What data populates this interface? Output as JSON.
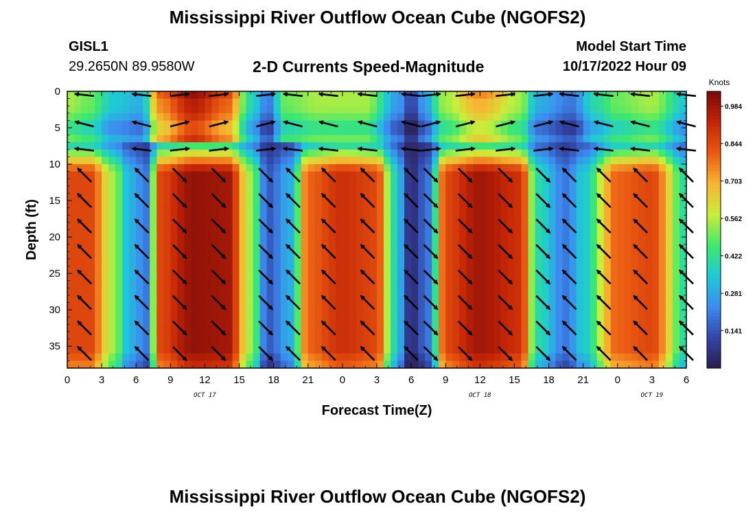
{
  "header": {
    "title": "Mississippi River Outflow Ocean Cube (NGOFS2)",
    "station_id": "GISL1",
    "station_coords": "29.2650N  89.9580W",
    "plot_title": "2-D Currents Speed-Magnitude",
    "model_start_label": "Model Start Time",
    "model_start_value": "10/17/2022 Hour 09"
  },
  "footer": {
    "title": "Mississippi River Outflow Ocean Cube (NGOFS2)"
  },
  "chart_data": {
    "type": "heatmap",
    "title": "2-D Currents Speed-Magnitude",
    "xlabel": "Forecast Time(Z)",
    "ylabel": "Depth (ft)",
    "x_hours_range": [
      0,
      54
    ],
    "x_tick_hours": [
      0,
      3,
      6,
      9,
      12,
      15,
      18,
      21,
      24,
      27,
      30,
      33,
      36,
      39,
      42,
      45,
      48,
      51,
      54
    ],
    "x_tick_labels": [
      "0",
      "3",
      "6",
      "9",
      "12",
      "15",
      "18",
      "21",
      "0",
      "3",
      "6",
      "9",
      "12",
      "15",
      "18",
      "21",
      "0",
      "3",
      "6"
    ],
    "date_labels": [
      {
        "hour": 12,
        "text": "OCT 17"
      },
      {
        "hour": 36,
        "text": "OCT 18"
      },
      {
        "hour": 51,
        "text": "OCT 19"
      }
    ],
    "ylim": [
      0,
      38
    ],
    "y_ticks": [
      0,
      5,
      10,
      15,
      20,
      25,
      30,
      35
    ],
    "colorbar": {
      "unit_label": "Knots",
      "range": [
        0.0,
        1.04
      ],
      "tick_values": [
        0.141,
        0.281,
        0.422,
        0.562,
        0.703,
        0.844,
        0.984
      ],
      "tick_labels": [
        "0.141",
        "0.281",
        "0.422",
        "0.562",
        "0.703",
        "0.844",
        "0.984"
      ]
    },
    "surface_layer": {
      "depth_range": [
        0,
        8
      ],
      "key_times_hours": [
        0,
        2,
        4,
        6.5,
        8,
        11,
        14,
        16,
        17.5,
        19,
        22,
        26,
        29,
        30,
        31,
        33,
        36,
        39.5,
        41,
        44,
        46,
        48,
        51,
        54
      ],
      "key_speeds_knots": [
        0.55,
        0.5,
        0.35,
        0.3,
        0.75,
        0.95,
        0.8,
        0.4,
        0.2,
        0.5,
        0.55,
        0.55,
        0.25,
        0.1,
        0.25,
        0.55,
        0.7,
        0.55,
        0.3,
        0.2,
        0.4,
        0.5,
        0.55,
        0.35
      ]
    },
    "lower_layer": {
      "depth_range": [
        8,
        38
      ],
      "key_times_hours": [
        0,
        2,
        4,
        5.5,
        7,
        8,
        11,
        14,
        16,
        17.5,
        19.5,
        21,
        24,
        27,
        28.5,
        30,
        31.5,
        33,
        36,
        39.5,
        41,
        43.5,
        45,
        48,
        51,
        54
      ],
      "key_speeds_knots": [
        0.85,
        0.85,
        0.55,
        0.3,
        0.2,
        0.85,
        1.0,
        0.98,
        0.55,
        0.15,
        0.3,
        0.8,
        0.9,
        0.85,
        0.4,
        0.05,
        0.2,
        0.85,
        0.98,
        0.9,
        0.4,
        0.2,
        0.35,
        0.8,
        0.85,
        0.4
      ]
    },
    "arrow_times_hours": [
      1.5,
      6.5,
      9.8,
      13.2,
      17.3,
      19.7,
      22.8,
      26.2,
      30,
      31.7,
      34.7,
      38.2,
      41.5,
      43.8,
      46.8,
      50,
      54
    ],
    "arrow_depths_ft": [
      0.5,
      4.5,
      8,
      11.5,
      15,
      18.5,
      22,
      25.5,
      29,
      32.5,
      36
    ],
    "arrow_phase": {
      "surface": [
        {
          "until_hour": 8,
          "direction": "west"
        },
        {
          "until_hour": 18,
          "direction": "east"
        },
        {
          "until_hour": 30,
          "direction": "west"
        },
        {
          "until_hour": 42,
          "direction": "east"
        },
        {
          "until_hour": 54,
          "direction": "west"
        }
      ],
      "lower": [
        {
          "until_hour": 8,
          "direction": "northwest"
        },
        {
          "until_hour": 18,
          "direction": "southeast"
        },
        {
          "until_hour": 30,
          "direction": "northwest"
        },
        {
          "until_hour": 42,
          "direction": "southeast"
        },
        {
          "until_hour": 54,
          "direction": "northwest"
        }
      ]
    },
    "colors": {
      "scale": [
        "#2b1b4e",
        "#3346a8",
        "#3d8cf0",
        "#1fc9d6",
        "#3ee86e",
        "#c9ee3a",
        "#f8b532",
        "#ea5a12",
        "#c42506",
        "#7a0a0a"
      ],
      "arrow": "#000000",
      "axis": "#000000"
    }
  }
}
